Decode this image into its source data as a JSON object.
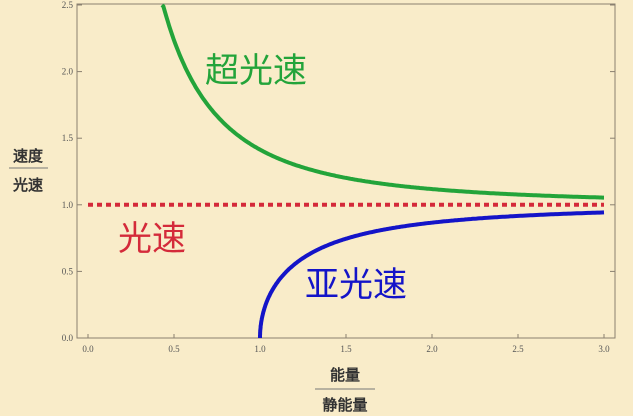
{
  "chart_data": {
    "type": "line",
    "xlabel": {
      "numerator": "能量",
      "denominator": "静能量"
    },
    "ylabel": {
      "numerator": "速度",
      "denominator": "光速"
    },
    "xlim": [
      0,
      3
    ],
    "ylim": [
      0,
      2.5
    ],
    "x_ticks": [
      "0.0",
      "0.5",
      "1.0",
      "1.5",
      "2.0",
      "2.5",
      "3.0"
    ],
    "y_ticks": [
      "0.0",
      "0.5",
      "1.0",
      "1.5",
      "2.0",
      "2.5"
    ],
    "grid": false,
    "series": [
      {
        "name": "超光速",
        "color": "#23a43a",
        "style": "solid",
        "x": [
          0.43,
          0.5,
          0.6,
          0.75,
          1.0,
          1.25,
          1.5,
          2.0,
          2.5,
          3.0
        ],
        "y": [
          2.53,
          2.24,
          1.94,
          1.67,
          1.41,
          1.28,
          1.2,
          1.12,
          1.08,
          1.05
        ]
      },
      {
        "name": "光速",
        "color": "#d42a3a",
        "style": "dotted",
        "x": [
          0,
          3
        ],
        "y": [
          1,
          1
        ]
      },
      {
        "name": "亚光速",
        "color": "#1414c8",
        "style": "solid",
        "x": [
          1.0,
          1.02,
          1.05,
          1.1,
          1.25,
          1.5,
          2.0,
          2.5,
          3.0
        ],
        "y": [
          0,
          0.2,
          0.3,
          0.42,
          0.6,
          0.75,
          0.87,
          0.92,
          0.94
        ]
      }
    ]
  }
}
